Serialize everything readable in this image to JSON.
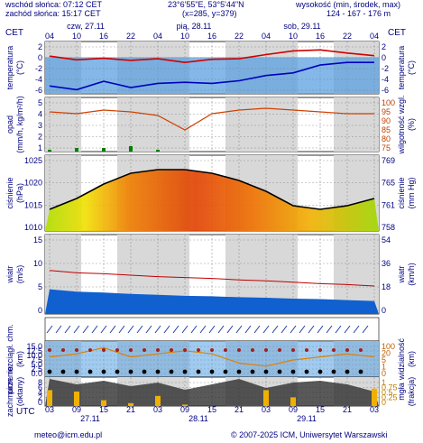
{
  "header": {
    "sunrise": "wschód słońca: 07:12 CET",
    "sunset": "zachód słońca: 15:17 CET",
    "coords": "23°6'55\"E, 53°5'44\"N",
    "grid": "(x=285, y=379)",
    "alt_title": "wysokość (min, środek, max)",
    "alt_values": "124 - 167 - 176 m"
  },
  "timezone_left": "CET",
  "timezone_right": "CET",
  "timezone_bottom": "UTC",
  "top_days": [
    "czw, 27.11",
    "pią, 28.11",
    "sob, 29.11"
  ],
  "top_hours": [
    "04",
    "10",
    "16",
    "22",
    "04",
    "10",
    "16",
    "22",
    "04",
    "10",
    "16",
    "22",
    "04"
  ],
  "bottom_hours": [
    "03",
    "09",
    "15",
    "21",
    "03",
    "09",
    "15",
    "21",
    "03",
    "09",
    "15",
    "21",
    "03"
  ],
  "bottom_dates": [
    "27.11",
    "28.11",
    "29.11"
  ],
  "footer": {
    "email": "meteo@icm.edu.pl",
    "copyright": "© 2007-2025 ICM, Uniwersytet Warszawski"
  },
  "colors": {
    "temperature": "#d00000",
    "dewpoint": "#0000c0",
    "humidity": "#d04000",
    "pressure": "#000000",
    "wind_fill": "#1060d0",
    "gust": "#c00000",
    "precip": "#008000",
    "fog": "#f0b000"
  },
  "chart_data": [
    {
      "type": "line",
      "left_label": "temperatura",
      "left_unit": "(°C)",
      "right_label": "temperatura",
      "right_unit": "(°C)",
      "ylim": [
        -7,
        3
      ],
      "ticks": [
        "2",
        "0",
        "-2",
        "-4",
        "-6"
      ],
      "x_hours": [
        0,
        6,
        12,
        18,
        24,
        30,
        36,
        42,
        48,
        54,
        60,
        66,
        72
      ],
      "series": [
        {
          "values": [
            0.2,
            -0.5,
            -0.2,
            -0.6,
            -0.3,
            -1.0,
            -0.4,
            -0.3,
            0.5,
            1.2,
            1.4,
            0.8,
            0.3
          ]
        },
        {
          "values": [
            -5.5,
            -6.2,
            -4.6,
            -5.8,
            -5.0,
            -4.8,
            -5.0,
            -4.5,
            -3.5,
            -3.0,
            -1.5,
            -1.0,
            -1.0
          ]
        }
      ]
    },
    {
      "type": "line",
      "left_label": "opad",
      "left_unit": "(mm/h, kg/m²/h)",
      "right_label": "wilgotność wzgl.",
      "right_unit": "(%)",
      "left_ticks": [
        "5",
        "4",
        "3",
        "2",
        "1"
      ],
      "right_ticks": [
        "100",
        "95",
        "90",
        "85",
        "80",
        "75"
      ],
      "ylim_right": [
        75,
        100
      ],
      "x_hours": [
        0,
        6,
        12,
        18,
        24,
        30,
        36,
        42,
        48,
        54,
        60,
        66,
        72
      ],
      "series": [
        {
          "values": [
            94,
            93,
            95,
            94,
            92,
            84,
            93,
            95,
            96,
            95,
            94,
            93,
            93
          ]
        }
      ],
      "precip": [
        0.1,
        0.2,
        0.2,
        0.3,
        0.1,
        0,
        0,
        0,
        0,
        0,
        0,
        0,
        0
      ]
    },
    {
      "type": "area",
      "left_label": "ciśnienie",
      "left_unit": "(hPa)",
      "right_label": "ciśnienie",
      "right_unit": "(mm Hg)",
      "left_ticks": [
        "1025",
        "1020",
        "1015",
        "1010"
      ],
      "right_ticks": [
        "769",
        "765",
        "761",
        "758"
      ],
      "ylim": [
        1007,
        1028
      ],
      "x_hours": [
        0,
        6,
        12,
        18,
        24,
        30,
        36,
        42,
        48,
        54,
        60,
        66,
        72
      ],
      "values": [
        1013,
        1016,
        1020,
        1023,
        1024,
        1024,
        1023,
        1021,
        1018,
        1014,
        1013,
        1014,
        1016
      ]
    },
    {
      "type": "area",
      "left_label": "wiatr",
      "left_unit": "(m/s)",
      "right_label": "wiatr",
      "right_unit": "(km/h)",
      "left_ticks": [
        "15",
        "10",
        "5",
        "0"
      ],
      "right_ticks": [
        "54",
        "36",
        "18",
        "0"
      ],
      "ylim": [
        0,
        15
      ],
      "x_hours": [
        0,
        6,
        12,
        18,
        24,
        30,
        36,
        42,
        48,
        54,
        60,
        66,
        72
      ],
      "series": [
        {
          "values": [
            4.5,
            4.0,
            3.8,
            3.5,
            3.3,
            3.1,
            3.0,
            2.8,
            2.7,
            2.5,
            2.4,
            2.2,
            2.0
          ]
        },
        {
          "values": [
            8.5,
            8.0,
            7.8,
            7.5,
            7.2,
            7.0,
            6.8,
            6.5,
            6.3,
            6.0,
            5.7,
            5.5,
            5.2
          ]
        }
      ]
    },
    {
      "type": "scatter",
      "left_label": "pion. rozciągł. chm.",
      "left_unit": "(km)",
      "right_label": "widzialność",
      "right_unit": "(km)",
      "left_ticks": [
        "15.0",
        "12.5",
        "10.0",
        "7.5",
        "5.0",
        "2.5",
        "0.0"
      ],
      "right_ticks": [
        "100",
        "20",
        "5",
        "1",
        "0"
      ],
      "ylim": [
        0,
        15
      ],
      "x_hours": [
        0,
        6,
        12,
        18,
        24,
        30,
        36,
        42,
        48,
        54,
        60,
        66,
        72
      ],
      "visibility_km": [
        3.0,
        3.5,
        4.5,
        3.0,
        3.5,
        4.0,
        3.5,
        2.0,
        1.5,
        2.5,
        3.0,
        3.5,
        3.0
      ]
    },
    {
      "type": "area",
      "left_label": "zachmurzenie",
      "left_unit": "(oktany)",
      "right_label": "mgła",
      "right_unit": "(frakcja)",
      "left_ticks": [
        "8",
        "6",
        "4",
        "2",
        "0"
      ],
      "right_ticks": [
        "1",
        "0.75",
        "0.5",
        "0.25",
        "0"
      ],
      "ylim": [
        0,
        8
      ],
      "x_hours": [
        0,
        6,
        12,
        18,
        24,
        30,
        36,
        42,
        48,
        54,
        60,
        66,
        72
      ],
      "cloud_octas": [
        7.5,
        6.0,
        7.0,
        5.5,
        6.5,
        4.5,
        6.0,
        7.5,
        5.0,
        6.5,
        7.0,
        6.0,
        4.0
      ],
      "fog_fraction": [
        0.55,
        0.5,
        0.2,
        0.1,
        0.35,
        0.05,
        0.0,
        0.0,
        0.55,
        0.3,
        0.0,
        0.0,
        0.6
      ]
    }
  ]
}
